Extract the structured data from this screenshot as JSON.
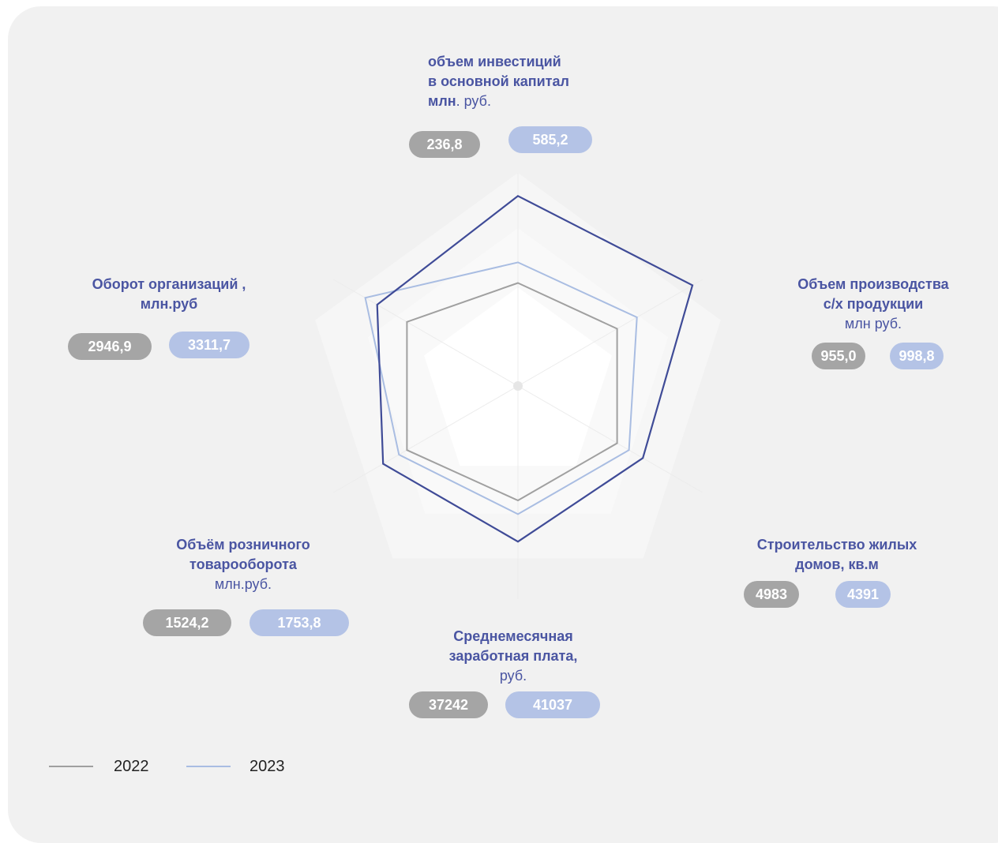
{
  "chart_data": {
    "type": "radar",
    "axes": [
      {
        "name_lines": [
          "объем инвестиций",
          "в основной капитал"
        ],
        "name_bold_tail": "млн",
        "name_unit": ". руб.",
        "v2022": "236,8",
        "v2023": "585,2"
      },
      {
        "name_lines": [
          "Объем производства",
          "с/х  продукции"
        ],
        "name_unit": "млн руб.",
        "v2022": "955,0",
        "v2023": "998,8"
      },
      {
        "name_lines": [
          "Строительство жилых",
          "домов, кв.м"
        ],
        "name_unit": "",
        "v2022": "4983",
        "v2023": "4391"
      },
      {
        "name_lines": [
          "Среднемесячная",
          "заработная плата,"
        ],
        "name_unit": "руб.",
        "v2022": "37242",
        "v2023": "41037"
      },
      {
        "name_lines": [
          "Объём розничного",
          "товарооборота"
        ],
        "name_unit": "млн.руб.",
        "v2022": "1524,2",
        "v2023": "1753,8"
      },
      {
        "name_lines": [
          "Оборот организаций ,",
          "млн.руб"
        ],
        "name_unit": "",
        "v2022": "2946,9",
        "v2023": "3311,7"
      }
    ],
    "series": [
      {
        "name": "2022",
        "color": "#a0a0a0",
        "norm": [
          0.45,
          0.5,
          0.5,
          0.5,
          0.56,
          0.56
        ]
      },
      {
        "name": "2023",
        "color": "#a9bde2",
        "norm": [
          0.54,
          0.6,
          0.56,
          0.56,
          0.6,
          0.77
        ]
      },
      {
        "color": "#3f4b97",
        "norm": [
          0.83,
          0.88,
          0.63,
          0.68,
          0.68,
          0.71
        ]
      }
    ],
    "grid": true,
    "legend_position": "bottom-left"
  }
}
